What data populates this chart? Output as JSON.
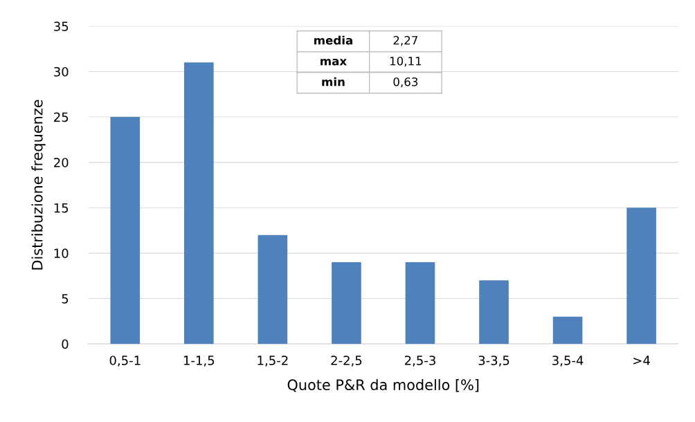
{
  "chart_data": {
    "type": "bar",
    "xlabel": "Quote P&R da modello [%]",
    "ylabel": "Distribuzione frequenze",
    "categories": [
      "0,5-1",
      "1-1,5",
      "1,5-2",
      "2-2,5",
      "2,5-3",
      "3-3,5",
      "3,5-4",
      ">4"
    ],
    "values": [
      25,
      31,
      12,
      9,
      9,
      7,
      3,
      15
    ],
    "color": "#4f81bd",
    "ylim": [
      0,
      35
    ],
    "yticks": [
      0,
      5,
      10,
      15,
      20,
      25,
      30,
      35
    ],
    "grid": "y",
    "legend": false,
    "annotations": [
      "media",
      "2,27",
      "max",
      "10,11",
      "min",
      "0,63"
    ]
  }
}
